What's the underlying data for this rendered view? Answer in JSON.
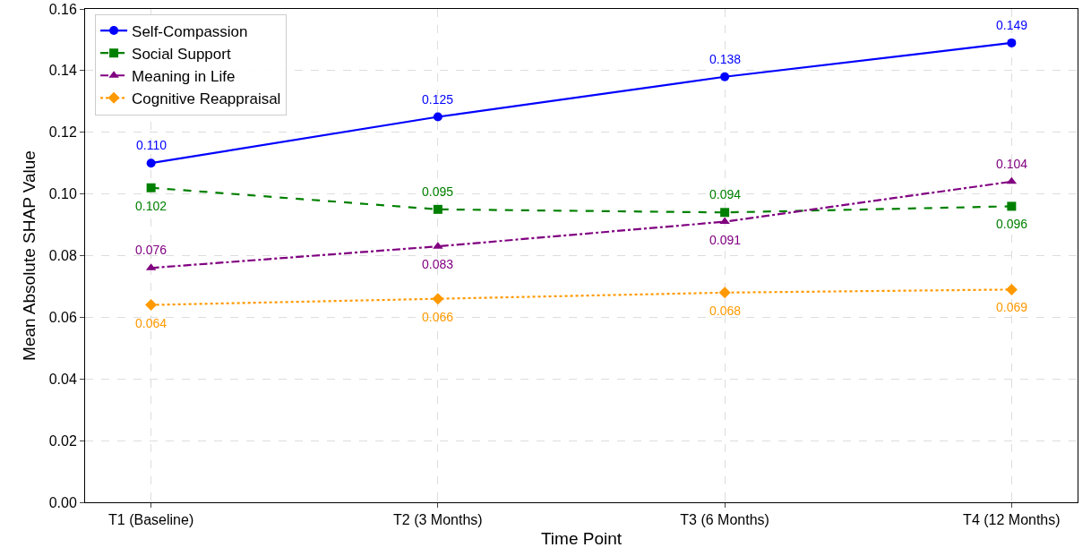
{
  "chart_data": {
    "type": "line",
    "xlabel": "Time Point",
    "ylabel": "Mean Absolute SHAP Value",
    "categories": [
      "T1 (Baseline)",
      "T2 (3 Months)",
      "T3 (6 Months)",
      "T4 (12 Months)"
    ],
    "series": [
      {
        "name": "Self-Compassion",
        "color": "#0000ff",
        "marker": "circle",
        "line_style": "solid",
        "values": [
          0.11,
          0.125,
          0.138,
          0.149
        ],
        "value_labels": [
          "0.110",
          "0.125",
          "0.138",
          "0.149"
        ]
      },
      {
        "name": "Social Support",
        "color": "#008000",
        "marker": "square",
        "line_style": "dashed",
        "values": [
          0.102,
          0.095,
          0.094,
          0.096
        ],
        "value_labels": [
          "0.102",
          "0.095",
          "0.094",
          "0.096"
        ]
      },
      {
        "name": "Meaning in Life",
        "color": "#800080",
        "marker": "triangle",
        "line_style": "dashdot",
        "values": [
          0.076,
          0.083,
          0.091,
          0.104
        ],
        "value_labels": [
          "0.076",
          "0.083",
          "0.091",
          "0.104"
        ]
      },
      {
        "name": "Cognitive Reappraisal",
        "color": "#ff9900",
        "marker": "diamond",
        "line_style": "dotted",
        "values": [
          0.064,
          0.066,
          0.068,
          0.069
        ],
        "value_labels": [
          "0.064",
          "0.066",
          "0.068",
          "0.069"
        ]
      }
    ],
    "ylim": [
      0,
      0.16
    ],
    "yticks": [
      {
        "value": 0,
        "label": "0.00"
      },
      {
        "value": 0.02,
        "label": "0.02"
      },
      {
        "value": 0.04,
        "label": "0.04"
      },
      {
        "value": 0.06,
        "label": "0.06"
      },
      {
        "value": 0.08,
        "label": "0.08"
      },
      {
        "value": 0.1,
        "label": "0.10"
      },
      {
        "value": 0.12,
        "label": "0.12"
      },
      {
        "value": 0.14,
        "label": "0.14"
      },
      {
        "value": 0.16,
        "label": "0.16"
      }
    ],
    "grid": true,
    "legend": "top left"
  }
}
